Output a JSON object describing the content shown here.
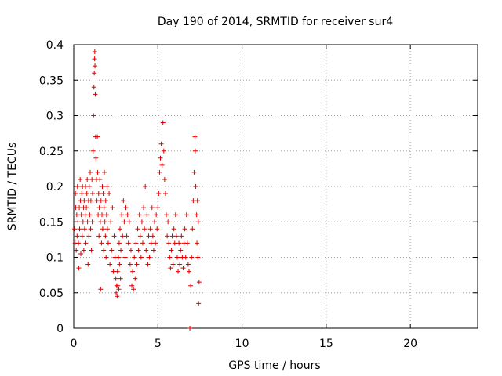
{
  "chart_data": {
    "type": "scatter",
    "title": "Day 190 of 2014, SRMTID for receiver sur4",
    "xlabel": "GPS time / hours",
    "ylabel": "SRMTID / TECUs",
    "xlim": [
      0,
      24
    ],
    "ylim": [
      0,
      0.4
    ],
    "xticks": [
      0,
      5,
      10,
      15,
      20
    ],
    "xtick_labels": [
      "0",
      "5",
      "10",
      "15",
      "20"
    ],
    "yticks": [
      0,
      0.05,
      0.1,
      0.15,
      0.2,
      0.25,
      0.3,
      0.35,
      0.4
    ],
    "ytick_labels": [
      "0",
      "0.05",
      "0.1",
      "0.15",
      "0.2",
      "0.25",
      "0.3",
      "0.35",
      "0.4"
    ],
    "grid": true,
    "marker": "plus",
    "color": "#dd0000",
    "series": [
      {
        "name": "SRMTID",
        "points": [
          [
            0.05,
            0.14
          ],
          [
            0.08,
            0.12
          ],
          [
            0.1,
            0.19
          ],
          [
            0.12,
            0.17
          ],
          [
            0.15,
            0.11
          ],
          [
            0.18,
            0.16
          ],
          [
            0.2,
            0.13
          ],
          [
            0.22,
            0.2
          ],
          [
            0.25,
            0.15
          ],
          [
            0.28,
            0.12
          ],
          [
            0.3,
            0.085
          ],
          [
            0.33,
            0.17
          ],
          [
            0.35,
            0.14
          ],
          [
            0.38,
            0.21
          ],
          [
            0.4,
            0.18
          ],
          [
            0.42,
            0.105
          ],
          [
            0.45,
            0.16
          ],
          [
            0.48,
            0.19
          ],
          [
            0.5,
            0.13
          ],
          [
            0.52,
            0.2
          ],
          [
            0.55,
            0.15
          ],
          [
            0.58,
            0.17
          ],
          [
            0.6,
            0.11
          ],
          [
            0.62,
            0.18
          ],
          [
            0.65,
            0.14
          ],
          [
            0.68,
            0.16
          ],
          [
            0.7,
            0.2
          ],
          [
            0.72,
            0.12
          ],
          [
            0.75,
            0.17
          ],
          [
            0.78,
            0.19
          ],
          [
            0.8,
            0.21
          ],
          [
            0.82,
            0.15
          ],
          [
            0.85,
            0.09
          ],
          [
            0.88,
            0.18
          ],
          [
            0.9,
            0.13
          ],
          [
            0.92,
            0.2
          ],
          [
            0.95,
            0.16
          ],
          [
            0.98,
            0.22
          ],
          [
            1.0,
            0.14
          ],
          [
            1.02,
            0.18
          ],
          [
            1.05,
            0.11
          ],
          [
            1.08,
            0.21
          ],
          [
            1.1,
            0.15
          ],
          [
            1.12,
            0.19
          ],
          [
            1.15,
            0.25
          ],
          [
            1.18,
            0.3
          ],
          [
            1.2,
            0.34
          ],
          [
            1.22,
            0.36
          ],
          [
            1.24,
            0.38
          ],
          [
            1.25,
            0.39
          ],
          [
            1.26,
            0.37
          ],
          [
            1.28,
            0.33
          ],
          [
            1.3,
            0.27
          ],
          [
            1.32,
            0.24
          ],
          [
            1.35,
            0.21
          ],
          [
            1.38,
            0.18
          ],
          [
            1.4,
            0.27
          ],
          [
            1.42,
            0.22
          ],
          [
            1.45,
            0.16
          ],
          [
            1.48,
            0.19
          ],
          [
            1.5,
            0.13
          ],
          [
            1.52,
            0.17
          ],
          [
            1.55,
            0.21
          ],
          [
            1.58,
            0.15
          ],
          [
            1.6,
            0.055
          ],
          [
            1.62,
            0.18
          ],
          [
            1.65,
            0.12
          ],
          [
            1.68,
            0.16
          ],
          [
            1.7,
            0.2
          ],
          [
            1.72,
            0.14
          ],
          [
            1.75,
            0.19
          ],
          [
            1.78,
            0.11
          ],
          [
            1.8,
            0.17
          ],
          [
            1.82,
            0.22
          ],
          [
            1.85,
            0.15
          ],
          [
            1.88,
            0.13
          ],
          [
            1.9,
            0.18
          ],
          [
            1.92,
            0.1
          ],
          [
            1.95,
            0.16
          ],
          [
            1.98,
            0.2
          ],
          [
            2.0,
            0.14
          ],
          [
            2.05,
            0.12
          ],
          [
            2.1,
            0.19
          ],
          [
            2.15,
            0.09
          ],
          [
            2.2,
            0.15
          ],
          [
            2.25,
            0.11
          ],
          [
            2.3,
            0.17
          ],
          [
            2.35,
            0.08
          ],
          [
            2.4,
            0.13
          ],
          [
            2.45,
            0.1
          ],
          [
            2.5,
            0.07
          ],
          [
            2.52,
            0.05
          ],
          [
            2.55,
            0.06
          ],
          [
            2.58,
            0.045
          ],
          [
            2.6,
            0.08
          ],
          [
            2.62,
            0.06
          ],
          [
            2.65,
            0.1
          ],
          [
            2.68,
            0.055
          ],
          [
            2.7,
            0.12
          ],
          [
            2.72,
            0.09
          ],
          [
            2.75,
            0.14
          ],
          [
            2.78,
            0.07
          ],
          [
            2.8,
            0.11
          ],
          [
            2.85,
            0.16
          ],
          [
            2.9,
            0.13
          ],
          [
            2.95,
            0.18
          ],
          [
            3.0,
            0.15
          ],
          [
            3.05,
            0.1
          ],
          [
            3.1,
            0.17
          ],
          [
            3.15,
            0.13
          ],
          [
            3.2,
            0.16
          ],
          [
            3.25,
            0.12
          ],
          [
            3.3,
            0.15
          ],
          [
            3.35,
            0.09
          ],
          [
            3.4,
            0.11
          ],
          [
            3.45,
            0.06
          ],
          [
            3.5,
            0.08
          ],
          [
            3.55,
            0.055
          ],
          [
            3.6,
            0.1
          ],
          [
            3.65,
            0.07
          ],
          [
            3.7,
            0.12
          ],
          [
            3.75,
            0.09
          ],
          [
            3.8,
            0.14
          ],
          [
            3.85,
            0.11
          ],
          [
            3.9,
            0.16
          ],
          [
            3.95,
            0.13
          ],
          [
            4.0,
            0.1
          ],
          [
            4.05,
            0.15
          ],
          [
            4.1,
            0.12
          ],
          [
            4.15,
            0.17
          ],
          [
            4.2,
            0.14
          ],
          [
            4.25,
            0.2
          ],
          [
            4.3,
            0.11
          ],
          [
            4.35,
            0.16
          ],
          [
            4.4,
            0.09
          ],
          [
            4.45,
            0.13
          ],
          [
            4.5,
            0.1
          ],
          [
            4.55,
            0.14
          ],
          [
            4.6,
            0.12
          ],
          [
            4.65,
            0.17
          ],
          [
            4.7,
            0.13
          ],
          [
            4.75,
            0.11
          ],
          [
            4.8,
            0.15
          ],
          [
            4.85,
            0.12
          ],
          [
            4.9,
            0.16
          ],
          [
            4.95,
            0.14
          ],
          [
            5.0,
            0.17
          ],
          [
            5.05,
            0.19
          ],
          [
            5.1,
            0.22
          ],
          [
            5.15,
            0.24
          ],
          [
            5.2,
            0.26
          ],
          [
            5.25,
            0.23
          ],
          [
            5.3,
            0.29
          ],
          [
            5.35,
            0.25
          ],
          [
            5.4,
            0.21
          ],
          [
            5.45,
            0.19
          ],
          [
            5.5,
            0.16
          ],
          [
            5.55,
            0.13
          ],
          [
            5.6,
            0.15
          ],
          [
            5.65,
            0.12
          ],
          [
            5.7,
            0.1
          ],
          [
            5.75,
            0.085
          ],
          [
            5.8,
            0.11
          ],
          [
            5.85,
            0.13
          ],
          [
            5.9,
            0.09
          ],
          [
            5.95,
            0.14
          ],
          [
            6.0,
            0.12
          ],
          [
            6.05,
            0.16
          ],
          [
            6.1,
            0.13
          ],
          [
            6.15,
            0.1
          ],
          [
            6.2,
            0.08
          ],
          [
            6.25,
            0.12
          ],
          [
            6.3,
            0.09
          ],
          [
            6.35,
            0.11
          ],
          [
            6.4,
            0.13
          ],
          [
            6.45,
            0.1
          ],
          [
            6.5,
            0.085
          ],
          [
            6.55,
            0.12
          ],
          [
            6.6,
            0.14
          ],
          [
            6.65,
            0.1
          ],
          [
            6.7,
            0.16
          ],
          [
            6.75,
            0.12
          ],
          [
            6.8,
            0.09
          ],
          [
            6.85,
            0.08
          ],
          [
            6.9,
            0.0
          ],
          [
            6.95,
            0.06
          ],
          [
            7.0,
            0.1
          ],
          [
            7.05,
            0.14
          ],
          [
            7.1,
            0.18
          ],
          [
            7.15,
            0.22
          ],
          [
            7.2,
            0.27
          ],
          [
            7.22,
            0.25
          ],
          [
            7.25,
            0.2
          ],
          [
            7.3,
            0.16
          ],
          [
            7.32,
            0.12
          ],
          [
            7.35,
            0.18
          ],
          [
            7.38,
            0.1
          ],
          [
            7.4,
            0.15
          ],
          [
            7.42,
            0.035
          ],
          [
            7.45,
            0.065
          ]
        ]
      }
    ]
  }
}
